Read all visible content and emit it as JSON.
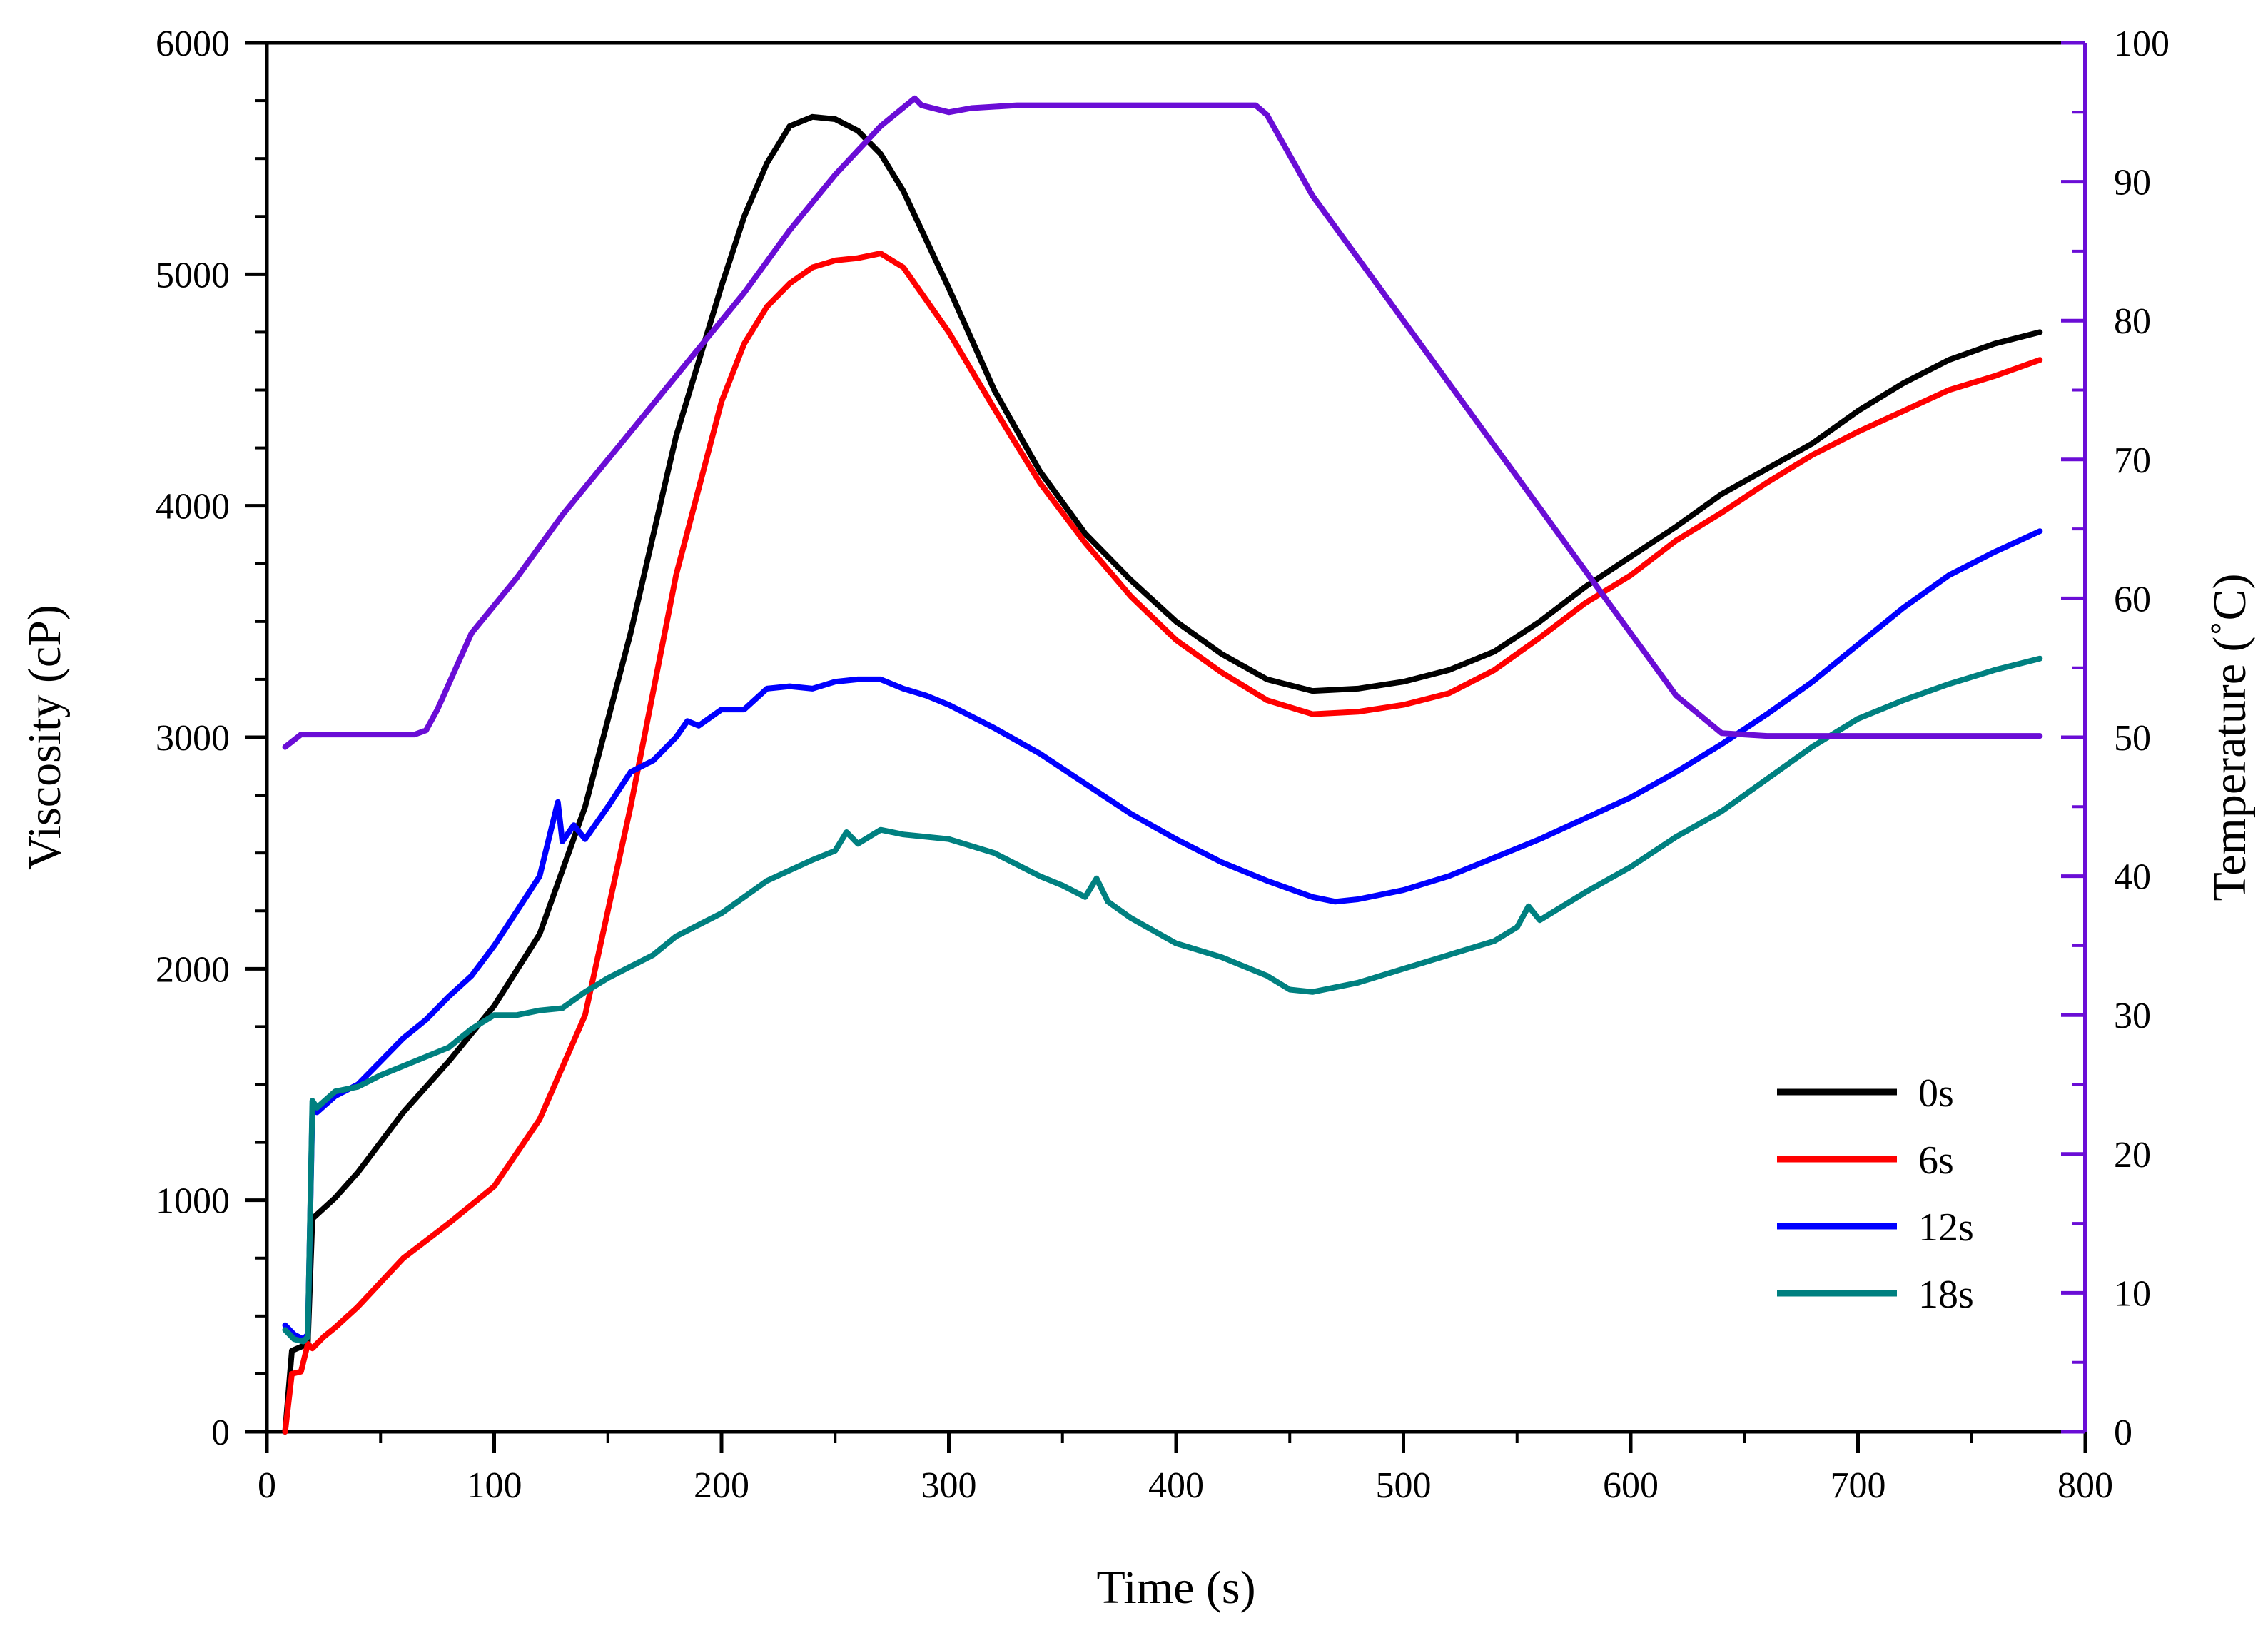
{
  "chart_data": {
    "type": "line",
    "title": "",
    "xlabel": "Time (s)",
    "ylabel": "Viscosity (cP)",
    "y2label": "Temperature (˚C)",
    "xlim": [
      0,
      800
    ],
    "ylim": [
      0,
      6000
    ],
    "y2lim": [
      0,
      100
    ],
    "xticks": [
      0,
      100,
      200,
      300,
      400,
      500,
      600,
      700,
      800
    ],
    "xtick_labels": [
      "0",
      "100",
      "200",
      "300",
      "400",
      "500",
      "600",
      "700",
      "800"
    ],
    "yticks": [
      0,
      1000,
      2000,
      3000,
      4000,
      5000,
      6000
    ],
    "ytick_labels": [
      "0",
      "1000",
      "2000",
      "3000",
      "4000",
      "5000",
      "6000"
    ],
    "y2ticks": [
      0,
      10,
      20,
      30,
      40,
      50,
      60,
      70,
      80,
      90,
      100
    ],
    "y2tick_labels": [
      "0",
      "10",
      "20",
      "30",
      "40",
      "50",
      "60",
      "70",
      "80",
      "90",
      "100"
    ],
    "grid": false,
    "legend_position": "bottom-right",
    "series": [
      {
        "name": "0s",
        "axis": "left",
        "color": "#000000",
        "x": [
          8,
          11,
          18,
          20,
          30,
          40,
          60,
          80,
          100,
          120,
          140,
          160,
          180,
          200,
          210,
          220,
          230,
          240,
          250,
          260,
          270,
          280,
          300,
          320,
          340,
          360,
          380,
          400,
          420,
          440,
          460,
          480,
          500,
          520,
          540,
          560,
          580,
          600,
          620,
          640,
          660,
          680,
          700,
          720,
          740,
          760,
          780
        ],
        "y": [
          0,
          350,
          380,
          920,
          1010,
          1120,
          1380,
          1600,
          1840,
          2150,
          2700,
          3450,
          4300,
          4950,
          5250,
          5480,
          5640,
          5680,
          5670,
          5620,
          5520,
          5360,
          4940,
          4500,
          4150,
          3880,
          3680,
          3500,
          3360,
          3250,
          3200,
          3210,
          3240,
          3290,
          3370,
          3500,
          3650,
          3780,
          3910,
          4050,
          4160,
          4270,
          4410,
          4530,
          4630,
          4700,
          4750
        ]
      },
      {
        "name": "6s",
        "axis": "left",
        "color": "#ff0000",
        "x": [
          8,
          11,
          15,
          18,
          20,
          25,
          30,
          40,
          60,
          80,
          100,
          120,
          140,
          160,
          180,
          200,
          210,
          220,
          230,
          240,
          250,
          260,
          270,
          280,
          300,
          320,
          340,
          360,
          380,
          400,
          420,
          440,
          460,
          480,
          500,
          520,
          540,
          560,
          580,
          600,
          620,
          640,
          660,
          680,
          700,
          720,
          740,
          760,
          780
        ],
        "y": [
          0,
          250,
          260,
          380,
          360,
          410,
          450,
          540,
          750,
          900,
          1060,
          1350,
          1800,
          2700,
          3700,
          4450,
          4700,
          4860,
          4960,
          5030,
          5060,
          5070,
          5090,
          5030,
          4750,
          4420,
          4100,
          3840,
          3610,
          3420,
          3280,
          3160,
          3100,
          3110,
          3140,
          3190,
          3290,
          3430,
          3580,
          3700,
          3850,
          3970,
          4100,
          4220,
          4320,
          4410,
          4500,
          4560,
          4630
        ]
      },
      {
        "name": "12s",
        "axis": "left",
        "color": "#0000ff",
        "x": [
          8,
          12,
          16,
          18,
          20,
          22,
          30,
          40,
          50,
          60,
          70,
          80,
          90,
          100,
          110,
          120,
          125,
          128,
          130,
          135,
          140,
          150,
          160,
          170,
          180,
          185,
          190,
          200,
          210,
          220,
          230,
          240,
          250,
          260,
          270,
          280,
          290,
          300,
          320,
          340,
          360,
          380,
          400,
          420,
          440,
          460,
          470,
          480,
          500,
          520,
          540,
          560,
          580,
          600,
          620,
          640,
          660,
          680,
          700,
          720,
          740,
          760,
          780
        ],
        "y": [
          460,
          420,
          400,
          420,
          1400,
          1380,
          1450,
          1500,
          1600,
          1700,
          1780,
          1880,
          1970,
          2100,
          2250,
          2400,
          2600,
          2720,
          2550,
          2620,
          2560,
          2700,
          2850,
          2900,
          3000,
          3070,
          3050,
          3120,
          3120,
          3210,
          3220,
          3210,
          3240,
          3250,
          3250,
          3210,
          3180,
          3140,
          3040,
          2930,
          2800,
          2670,
          2560,
          2460,
          2380,
          2310,
          2290,
          2300,
          2340,
          2400,
          2480,
          2560,
          2650,
          2740,
          2850,
          2970,
          3100,
          3240,
          3400,
          3560,
          3700,
          3800,
          3890
        ]
      },
      {
        "name": "18s",
        "axis": "left",
        "color": "#008080",
        "x": [
          8,
          12,
          16,
          18,
          20,
          22,
          30,
          40,
          50,
          60,
          80,
          90,
          100,
          110,
          120,
          130,
          140,
          150,
          160,
          170,
          180,
          200,
          220,
          240,
          250,
          255,
          260,
          270,
          280,
          300,
          320,
          340,
          350,
          360,
          365,
          370,
          380,
          400,
          420,
          440,
          450,
          460,
          470,
          480,
          500,
          520,
          540,
          550,
          555,
          560,
          580,
          600,
          620,
          640,
          660,
          680,
          700,
          720,
          740,
          760,
          780
        ],
        "y": [
          440,
          400,
          390,
          410,
          1430,
          1400,
          1470,
          1490,
          1540,
          1580,
          1660,
          1740,
          1800,
          1800,
          1820,
          1830,
          1900,
          1960,
          2010,
          2060,
          2140,
          2240,
          2380,
          2470,
          2510,
          2590,
          2540,
          2600,
          2580,
          2560,
          2500,
          2400,
          2360,
          2310,
          2390,
          2290,
          2220,
          2110,
          2050,
          1970,
          1910,
          1900,
          1920,
          1940,
          2000,
          2060,
          2120,
          2180,
          2270,
          2210,
          2330,
          2440,
          2570,
          2680,
          2820,
          2960,
          3080,
          3160,
          3230,
          3290,
          3340
        ]
      },
      {
        "name": "Temperature",
        "axis": "right",
        "color": "#6a0dd6",
        "x": [
          8,
          15,
          30,
          50,
          65,
          70,
          75,
          90,
          110,
          130,
          150,
          170,
          190,
          210,
          230,
          250,
          270,
          285,
          288,
          300,
          310,
          330,
          360,
          400,
          420,
          435,
          440,
          460,
          480,
          500,
          520,
          540,
          560,
          580,
          600,
          620,
          640,
          660,
          670,
          690,
          720,
          750,
          780
        ],
        "y": [
          49.3,
          50.2,
          50.2,
          50.2,
          50.2,
          50.5,
          52.0,
          57.5,
          61.5,
          66.0,
          70.0,
          74.0,
          78.0,
          82.0,
          86.5,
          90.5,
          94.0,
          96.0,
          95.5,
          95.0,
          95.3,
          95.5,
          95.5,
          95.5,
          95.5,
          95.5,
          94.8,
          89.0,
          84.5,
          80.0,
          75.5,
          71.0,
          66.5,
          62.0,
          57.5,
          53.0,
          50.3,
          50.1,
          50.1,
          50.1,
          50.1,
          50.1,
          50.1
        ]
      }
    ]
  }
}
